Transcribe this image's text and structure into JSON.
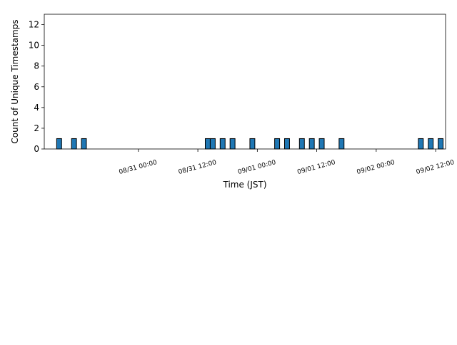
{
  "chart_data": {
    "type": "bar",
    "title": "",
    "xlabel": "Time (JST)",
    "ylabel": "Count of Unique Timestamps",
    "ylim": [
      0,
      13
    ],
    "yticks": [
      0,
      2,
      4,
      6,
      8,
      10,
      12
    ],
    "xlim": [
      "2024-08-30 05:00",
      "2024-09-02 14:00"
    ],
    "xticks": [
      {
        "t": "2024-08-31 00:00",
        "label": "08/31 00:00"
      },
      {
        "t": "2024-08-31 12:00",
        "label": "08/31 12:00"
      },
      {
        "t": "2024-09-01 00:00",
        "label": "09/01 00:00"
      },
      {
        "t": "2024-09-01 12:00",
        "label": "09/01 12:00"
      },
      {
        "t": "2024-09-02 00:00",
        "label": "09/02 00:00"
      },
      {
        "t": "2024-09-02 12:00",
        "label": "09/02 12:00"
      }
    ],
    "bin_hours": 1,
    "grid": false,
    "bar_color": "#1f77b4",
    "edge_color": "#000000",
    "bars": [
      {
        "t": "2024-08-30 08:00",
        "value": 1
      },
      {
        "t": "2024-08-30 11:00",
        "value": 1
      },
      {
        "t": "2024-08-30 13:00",
        "value": 1
      },
      {
        "t": "2024-08-31 14:00",
        "value": 1
      },
      {
        "t": "2024-08-31 15:00",
        "value": 1
      },
      {
        "t": "2024-08-31 17:00",
        "value": 1
      },
      {
        "t": "2024-08-31 19:00",
        "value": 1
      },
      {
        "t": "2024-08-31 23:00",
        "value": 1
      },
      {
        "t": "2024-09-01 04:00",
        "value": 1
      },
      {
        "t": "2024-09-01 06:00",
        "value": 1
      },
      {
        "t": "2024-09-01 09:00",
        "value": 1
      },
      {
        "t": "2024-09-01 11:00",
        "value": 1
      },
      {
        "t": "2024-09-01 13:00",
        "value": 1
      },
      {
        "t": "2024-09-01 17:00",
        "value": 1
      },
      {
        "t": "2024-09-02 09:00",
        "value": 1
      },
      {
        "t": "2024-09-02 11:00",
        "value": 1
      },
      {
        "t": "2024-09-02 13:00",
        "value": 1
      }
    ]
  }
}
